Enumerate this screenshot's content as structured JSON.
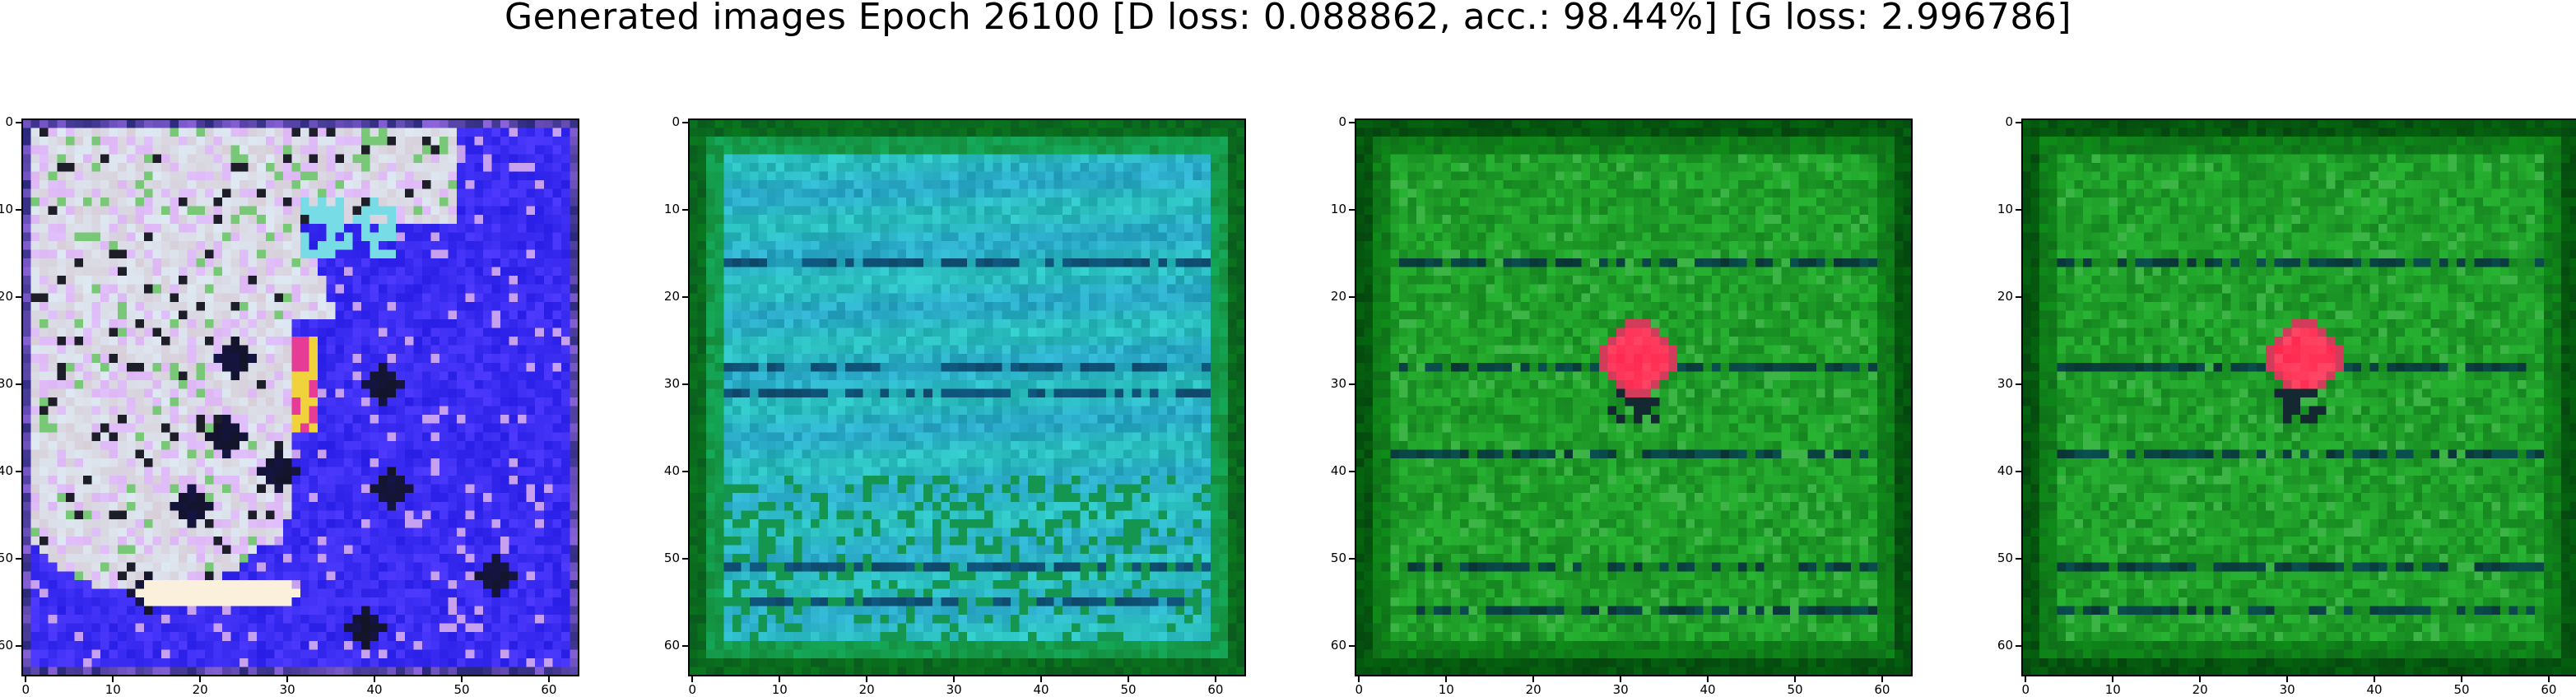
{
  "title": "Generated images Epoch 26100 [D loss: 0.088862, acc.: 98.44%] [G loss: 2.996786]",
  "ticks": {
    "x": [
      "0",
      "10",
      "20",
      "30",
      "40",
      "50",
      "60"
    ],
    "y": [
      "0",
      "10",
      "20",
      "30",
      "40",
      "50",
      "60"
    ]
  },
  "panels": [
    {
      "name": "generated-image-1",
      "palette": "blue-white",
      "description_colors": [
        "#2a1df5",
        "#e9e6f7",
        "#d89be6"
      ]
    },
    {
      "name": "generated-image-2",
      "palette": "cyan-green",
      "description_colors": [
        "#1db8b8",
        "#0a6b2a",
        "#0a2a6b"
      ]
    },
    {
      "name": "generated-image-3",
      "palette": "green-red-dot",
      "description_colors": [
        "#138a1e",
        "#0a3d12",
        "#ff2a5a"
      ]
    },
    {
      "name": "generated-image-4",
      "palette": "green-red-dot",
      "description_colors": [
        "#138a1e",
        "#0a3d12",
        "#ff2a5a"
      ]
    }
  ]
}
